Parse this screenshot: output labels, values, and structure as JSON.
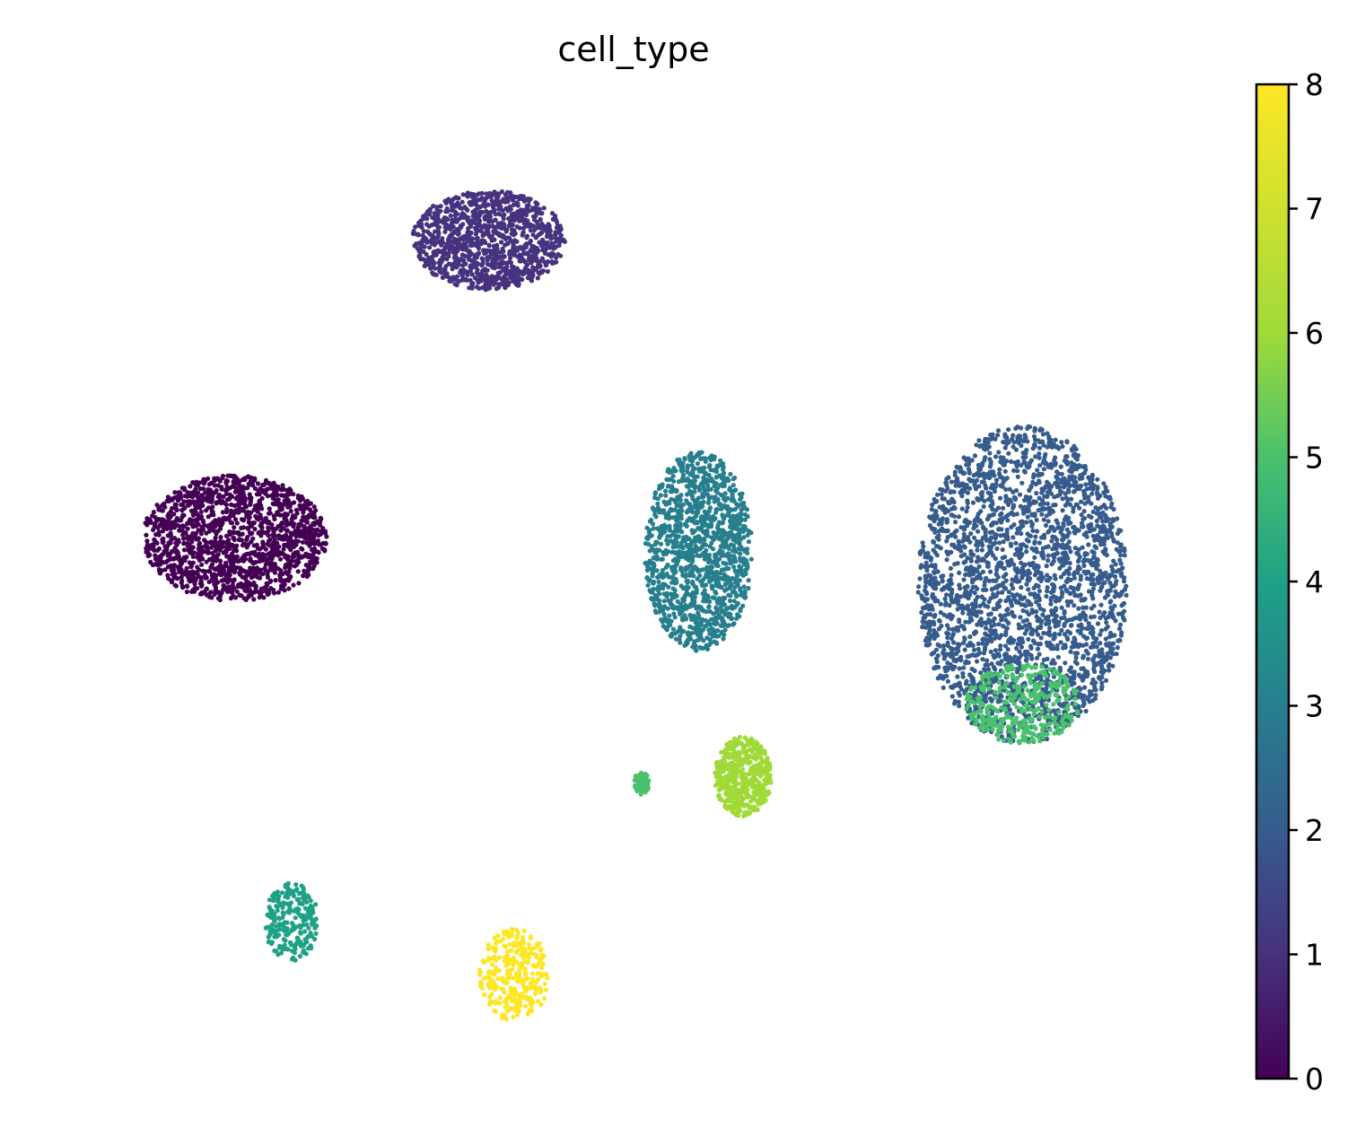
{
  "chart_data": {
    "type": "scatter",
    "title": "cell_type",
    "xlabel": "",
    "ylabel": "",
    "axes_visible": false,
    "grid": false,
    "colormap": "viridis",
    "colorbar": {
      "range": [
        0,
        8
      ],
      "ticks": [
        "0",
        "1",
        "2",
        "3",
        "4",
        "5",
        "6",
        "7",
        "8"
      ],
      "placement": "right"
    },
    "palette": {
      "0": "#440154",
      "1": "#46327e",
      "2": "#365c8d",
      "3": "#277f8e",
      "4": "#1fa187",
      "5": "#4ac16d",
      "6": "#a0da39",
      "7": "#fde725",
      "8": "#fde725"
    },
    "clusters": [
      {
        "category": 0,
        "center": [
          -6.8,
          0.5
        ],
        "spread": [
          1.45,
          0.95
        ],
        "points": 1500
      },
      {
        "category": 1,
        "center": [
          -2.8,
          5.0
        ],
        "spread": [
          1.2,
          0.75
        ],
        "points": 1100
      },
      {
        "category": 2,
        "center": [
          5.6,
          -0.2
        ],
        "spread": [
          1.65,
          2.4
        ],
        "points": 2600
      },
      {
        "category": 5,
        "center": [
          5.6,
          -2.0
        ],
        "spread": [
          0.9,
          0.6
        ],
        "points": 350
      },
      {
        "category": 3,
        "center": [
          0.5,
          0.3
        ],
        "spread": [
          0.85,
          1.5
        ],
        "points": 1300
      },
      {
        "category": 6,
        "center": [
          1.2,
          -3.1
        ],
        "spread": [
          0.45,
          0.6
        ],
        "points": 500
      },
      {
        "category": 5,
        "center": [
          -0.4,
          -3.2
        ],
        "spread": [
          0.12,
          0.18
        ],
        "points": 60
      },
      {
        "category": 4,
        "center": [
          -5.9,
          -5.3
        ],
        "spread": [
          0.42,
          0.6
        ],
        "points": 240
      },
      {
        "category": 7,
        "center": [
          -2.4,
          -6.1
        ],
        "spread": [
          0.55,
          0.7
        ],
        "points": 300
      }
    ]
  }
}
